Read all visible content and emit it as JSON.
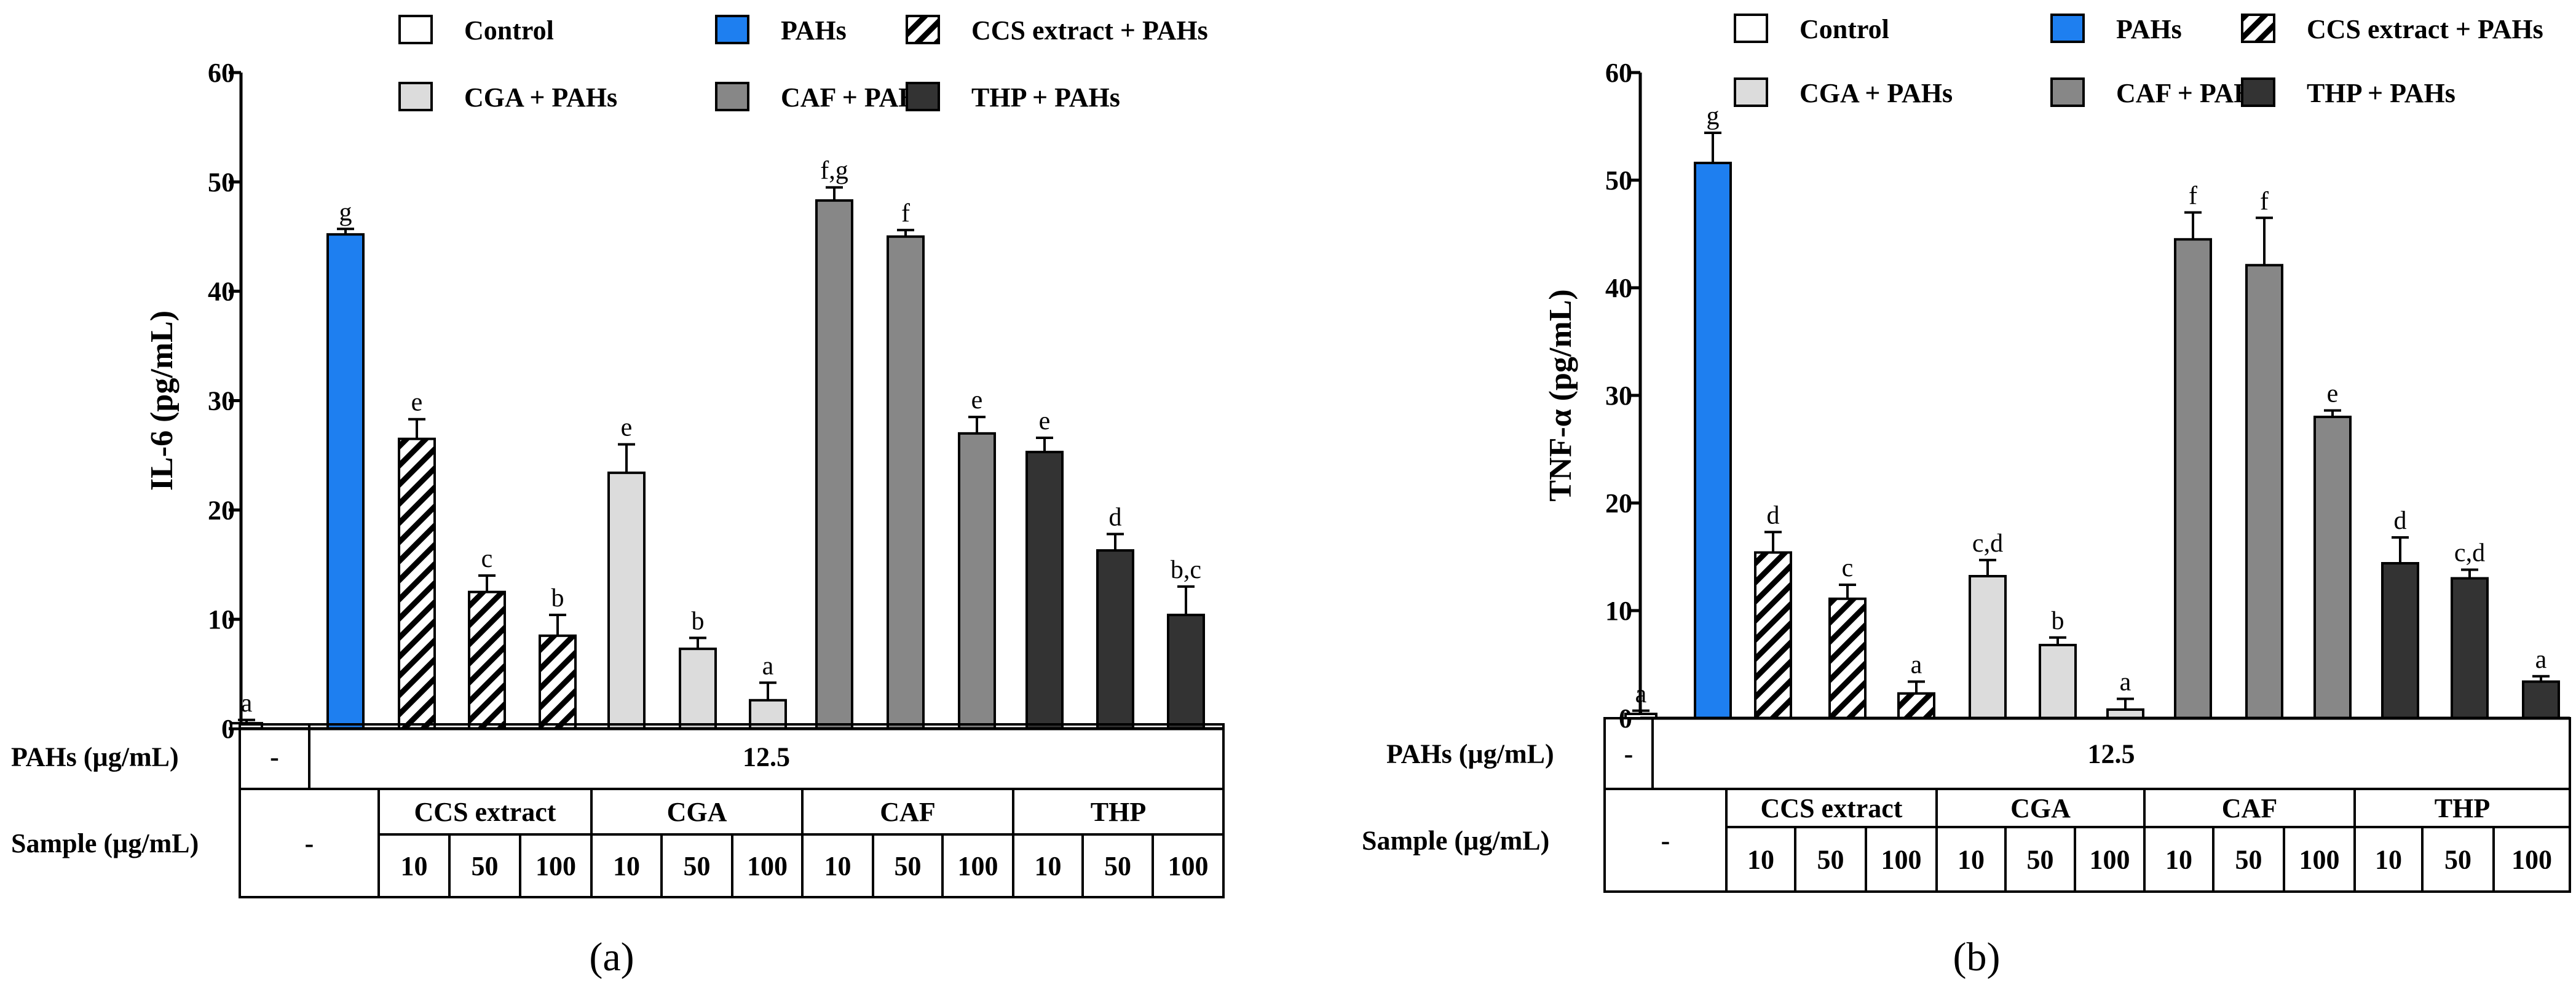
{
  "legend": [
    {
      "label": "Control",
      "style": "control"
    },
    {
      "label": "PAHs",
      "style": "pahs"
    },
    {
      "label": "CCS extract + PAHs",
      "style": "ccs"
    },
    {
      "label": "CGA + PAHs",
      "style": "cga"
    },
    {
      "label": "CAF + PAHs",
      "style": "caf"
    },
    {
      "label": "THP + PAHs",
      "style": "thp"
    }
  ],
  "colors": {
    "control": "#ffffff",
    "pahs": "#1e7ff0",
    "ccs": "hatch",
    "cga": "#dcdcdc",
    "caf": "#878787",
    "thp": "#333333",
    "axis": "#000000"
  },
  "table": {
    "pahs_row_label": "PAHs (µg/mL)",
    "pahs_control": "-",
    "pahs_value": "12.5",
    "sample_row_label": "Sample (µg/mL)",
    "sample_control": "-",
    "groups": [
      "CCS extract",
      "CGA",
      "CAF",
      "THP"
    ],
    "doses": [
      "10",
      "50",
      "100"
    ]
  },
  "chart_data": [
    {
      "type": "bar",
      "panel_label": "(a)",
      "ylabel": "IL-6 (pg/mL)",
      "ylim": [
        0,
        60
      ],
      "yticks": [
        0,
        10,
        20,
        30,
        40,
        50,
        60
      ],
      "categories": [
        "Control",
        "PAHs",
        "CCS extract 10",
        "CCS extract 50",
        "CCS extract 100",
        "CGA 10",
        "CGA 50",
        "CGA 100",
        "CAF 10",
        "CAF 50",
        "CAF 100",
        "THP 10",
        "THP 50",
        "THP 100"
      ],
      "styles": [
        "control",
        "pahs",
        "ccs",
        "ccs",
        "ccs",
        "cga",
        "cga",
        "cga",
        "caf",
        "caf",
        "caf",
        "thp",
        "thp",
        "thp"
      ],
      "values": [
        0.5,
        45.2,
        26.5,
        12.5,
        8.5,
        23.4,
        7.3,
        2.6,
        48.3,
        45.0,
        27.0,
        25.3,
        16.3,
        10.4
      ],
      "errors": [
        0.3,
        0.5,
        1.8,
        1.5,
        1.9,
        2.6,
        1.0,
        1.6,
        1.2,
        0.6,
        1.5,
        1.3,
        1.5,
        2.6
      ],
      "sig_labels": [
        "a",
        "g",
        "e",
        "c",
        "b",
        "e",
        "b",
        "a",
        "f,g",
        "f",
        "e",
        "e",
        "d",
        "b,c"
      ]
    },
    {
      "type": "bar",
      "panel_label": "(b)",
      "ylabel": "TNF-α (pg/mL)",
      "ylim": [
        0,
        60
      ],
      "yticks": [
        0,
        10,
        20,
        30,
        40,
        50,
        60
      ],
      "categories": [
        "Control",
        "PAHs",
        "CCS extract 10",
        "CCS extract 50",
        "CCS extract 100",
        "CGA 10",
        "CGA 50",
        "CGA 100",
        "CAF 10",
        "CAF 50",
        "CAF 100",
        "THP 10",
        "THP 50",
        "THP 100"
      ],
      "styles": [
        "control",
        "pahs",
        "ccs",
        "ccs",
        "ccs",
        "cga",
        "cga",
        "cga",
        "caf",
        "caf",
        "caf",
        "thp",
        "thp",
        "thp"
      ],
      "values": [
        0.4,
        51.6,
        15.4,
        11.1,
        2.3,
        13.2,
        6.8,
        0.8,
        44.5,
        42.1,
        28.0,
        14.4,
        13.0,
        3.4
      ],
      "errors": [
        0.3,
        2.8,
        1.9,
        1.3,
        1.1,
        1.5,
        0.7,
        1.0,
        2.5,
        4.4,
        0.6,
        2.4,
        0.8,
        0.5
      ],
      "sig_labels": [
        "a",
        "g",
        "d",
        "c",
        "a",
        "c,d",
        "b",
        "a",
        "f",
        "f",
        "e",
        "d",
        "c,d",
        "a"
      ]
    }
  ]
}
